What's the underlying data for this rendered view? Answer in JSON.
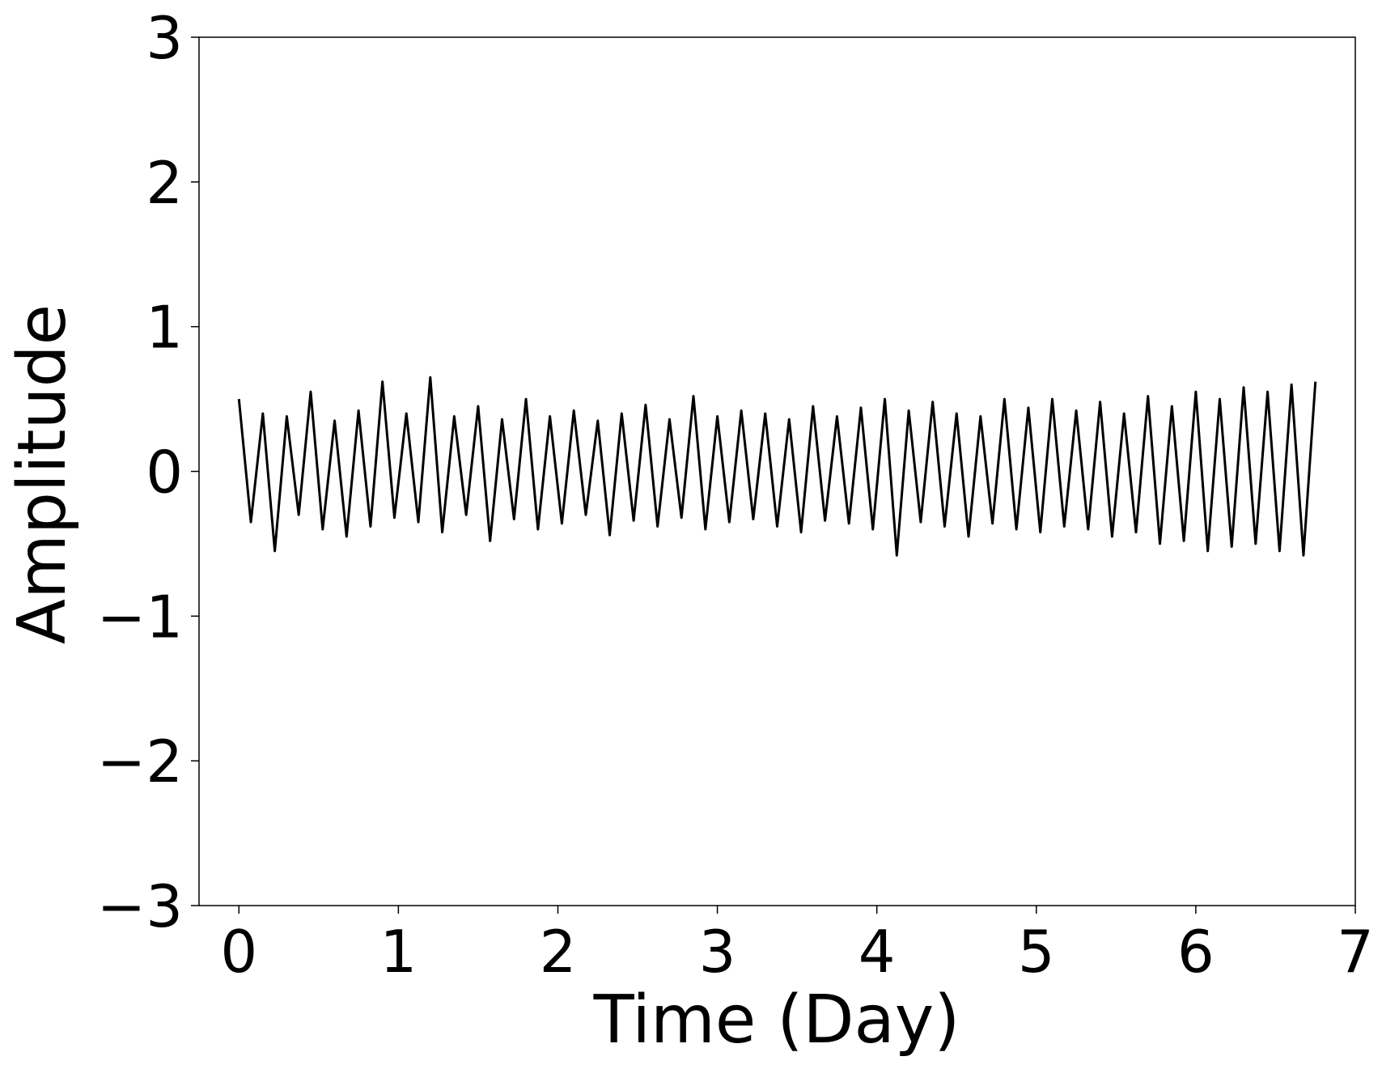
{
  "chart_data": {
    "type": "line",
    "xlabel": "Time (Day)",
    "ylabel": "Amplitude",
    "x": [
      0,
      0.075,
      0.15,
      0.225,
      0.3,
      0.375,
      0.45,
      0.525,
      0.6,
      0.675,
      0.75,
      0.825,
      0.9,
      0.975,
      1.05,
      1.125,
      1.2,
      1.275,
      1.35,
      1.425,
      1.5,
      1.575,
      1.65,
      1.725,
      1.8,
      1.875,
      1.95,
      2.025,
      2.1,
      2.175,
      2.25,
      2.325,
      2.4,
      2.475,
      2.55,
      2.625,
      2.7,
      2.775,
      2.85,
      2.925,
      3,
      3.075,
      3.15,
      3.225,
      3.3,
      3.375,
      3.45,
      3.525,
      3.6,
      3.675,
      3.75,
      3.825,
      3.9,
      3.975,
      4.05,
      4.125,
      4.2,
      4.275,
      4.35,
      4.425,
      4.5,
      4.575,
      4.65,
      4.725,
      4.8,
      4.875,
      4.95,
      5.025,
      5.1,
      5.175,
      5.25,
      5.325,
      5.4,
      5.475,
      5.55,
      5.625,
      5.7,
      5.775,
      5.85,
      5.925,
      6,
      6.075,
      6.15,
      6.225,
      6.3,
      6.375,
      6.45,
      6.525,
      6.6,
      6.675,
      6.75
    ],
    "series": [
      {
        "color": "#000000",
        "values": [
          0.5,
          -0.35,
          0.4,
          -0.55,
          0.38,
          -0.3,
          0.55,
          -0.4,
          0.35,
          -0.45,
          0.42,
          -0.38,
          0.62,
          -0.32,
          0.4,
          -0.35,
          0.65,
          -0.42,
          0.38,
          -0.3,
          0.45,
          -0.48,
          0.36,
          -0.33,
          0.5,
          -0.4,
          0.38,
          -0.36,
          0.42,
          -0.3,
          0.35,
          -0.44,
          0.4,
          -0.34,
          0.46,
          -0.38,
          0.36,
          -0.32,
          0.52,
          -0.4,
          0.38,
          -0.35,
          0.42,
          -0.33,
          0.4,
          -0.38,
          0.36,
          -0.42,
          0.45,
          -0.34,
          0.38,
          -0.36,
          0.44,
          -0.4,
          0.5,
          -0.58,
          0.42,
          -0.35,
          0.48,
          -0.38,
          0.4,
          -0.45,
          0.38,
          -0.36,
          0.5,
          -0.4,
          0.44,
          -0.42,
          0.5,
          -0.38,
          0.42,
          -0.4,
          0.48,
          -0.45,
          0.4,
          -0.42,
          0.52,
          -0.5,
          0.45,
          -0.48,
          0.55,
          -0.55,
          0.5,
          -0.52,
          0.58,
          -0.5,
          0.55,
          -0.55,
          0.6,
          -0.58,
          0.62
        ]
      }
    ],
    "xlim": [
      -0.25,
      7
    ],
    "ylim": [
      -3,
      3
    ],
    "xticks": [
      0,
      1,
      2,
      3,
      4,
      5,
      6,
      7
    ],
    "yticks": [
      {
        "value": -3,
        "label": "−3"
      },
      {
        "value": -2,
        "label": "−2"
      },
      {
        "value": -1,
        "label": "−1"
      },
      0,
      1,
      2,
      3
    ],
    "grid": false
  }
}
